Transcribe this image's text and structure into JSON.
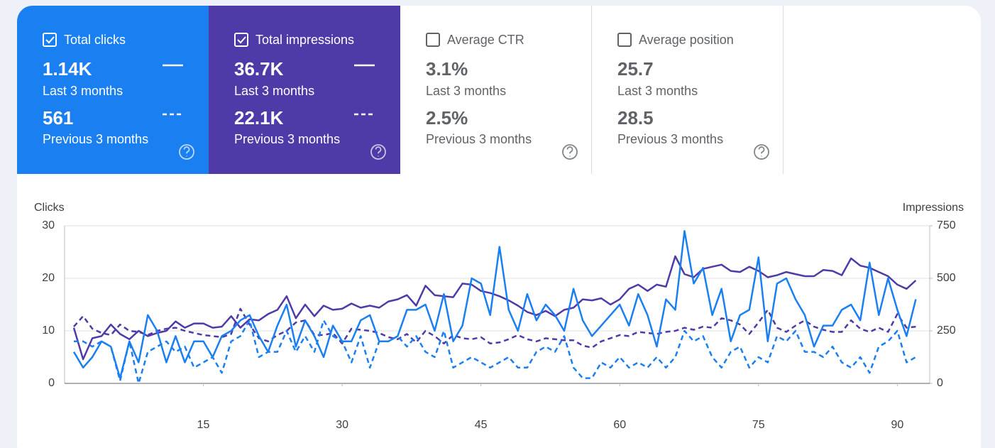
{
  "cards": [
    {
      "label": "Total clicks",
      "checked": true,
      "color": "#1a7ff0",
      "current": {
        "value": "1.14K",
        "period": "Last 3 months"
      },
      "previous": {
        "value": "561",
        "period": "Previous 3 months"
      }
    },
    {
      "label": "Total impressions",
      "checked": true,
      "color": "#4f3aa8",
      "current": {
        "value": "36.7K",
        "period": "Last 3 months"
      },
      "previous": {
        "value": "22.1K",
        "period": "Previous 3 months"
      }
    },
    {
      "label": "Average CTR",
      "checked": false,
      "color": "#ffffff",
      "current": {
        "value": "3.1%",
        "period": "Last 3 months"
      },
      "previous": {
        "value": "2.5%",
        "period": "Previous 3 months"
      }
    },
    {
      "label": "Average position",
      "checked": false,
      "color": "#ffffff",
      "current": {
        "value": "25.7",
        "period": "Last 3 months"
      },
      "previous": {
        "value": "28.5",
        "period": "Previous 3 months"
      }
    }
  ],
  "chart_data": {
    "type": "line",
    "ylabel": "Clicks",
    "y2label": "Impressions",
    "x": [
      1,
      2,
      3,
      4,
      5,
      6,
      7,
      8,
      9,
      10,
      11,
      12,
      13,
      14,
      15,
      16,
      17,
      18,
      19,
      20,
      21,
      22,
      23,
      24,
      25,
      26,
      27,
      28,
      29,
      30,
      31,
      32,
      33,
      34,
      35,
      36,
      37,
      38,
      39,
      40,
      41,
      42,
      43,
      44,
      45,
      46,
      47,
      48,
      49,
      50,
      51,
      52,
      53,
      54,
      55,
      56,
      57,
      58,
      59,
      60,
      61,
      62,
      63,
      64,
      65,
      66,
      67,
      68,
      69,
      70,
      71,
      72,
      73,
      74,
      75,
      76,
      77,
      78,
      79,
      80,
      81,
      82,
      83,
      84,
      85,
      86,
      87,
      88,
      89,
      90,
      91,
      92
    ],
    "xlim": [
      0,
      93.5
    ],
    "xticks": [
      15,
      30,
      45,
      60,
      75,
      90
    ],
    "ylim": [
      0,
      30
    ],
    "yticks": [
      0,
      10,
      20,
      30
    ],
    "y2lim": [
      0,
      750
    ],
    "y2ticks": [
      0,
      250,
      500,
      750
    ],
    "grid": true,
    "series": [
      {
        "name": "Clicks",
        "color": "#1a7ff0",
        "style": "solid",
        "values": [
          6,
          3,
          5,
          8,
          7,
          1,
          8,
          4,
          13,
          10,
          4,
          9,
          4,
          8,
          8,
          5,
          9,
          10,
          12,
          13,
          9,
          6,
          11,
          15,
          7,
          12,
          9,
          5,
          11,
          8,
          8,
          12,
          13,
          8,
          8,
          9,
          14,
          14,
          15,
          10,
          17,
          8,
          11,
          20,
          19,
          13,
          26,
          14,
          10,
          17,
          12,
          15,
          13,
          10,
          18,
          12,
          9,
          11,
          13,
          15,
          11,
          17,
          13,
          7,
          16,
          14,
          29,
          19,
          22,
          13,
          18,
          8,
          13,
          14,
          24,
          8,
          19,
          20,
          16,
          13,
          7,
          11,
          11,
          14,
          15,
          12,
          23,
          13,
          20,
          14,
          9,
          16
        ]
      },
      {
        "name": "Clicks previous",
        "color": "#1a7ff0",
        "style": "dashed",
        "values": [
          8,
          8,
          7,
          8,
          7,
          0.5,
          8,
          0,
          6,
          7,
          8,
          6,
          7,
          3,
          4,
          5,
          2,
          8,
          9,
          12,
          5,
          6,
          6,
          10,
          6,
          9,
          6,
          12,
          9,
          8,
          4,
          9,
          3,
          8,
          8,
          9,
          7,
          9,
          6,
          5,
          10,
          3,
          4,
          5,
          4,
          3,
          4,
          5,
          3,
          3,
          6,
          7,
          6,
          9,
          3,
          1,
          1,
          4,
          3,
          5,
          3,
          4,
          3,
          5,
          3,
          5,
          10,
          8,
          9,
          5,
          3,
          6,
          7,
          3,
          5,
          4,
          9,
          8,
          10,
          6,
          6,
          5,
          7,
          4,
          3,
          5,
          2,
          7,
          8,
          10,
          4,
          5
        ]
      },
      {
        "name": "Impressions",
        "color": "#4f3aa8",
        "style": "solid",
        "axis": "y2",
        "values": [
          265,
          115,
          215,
          225,
          280,
          235,
          210,
          250,
          225,
          240,
          250,
          295,
          265,
          285,
          285,
          265,
          270,
          320,
          265,
          305,
          300,
          330,
          350,
          415,
          310,
          375,
          320,
          370,
          350,
          355,
          380,
          360,
          370,
          360,
          390,
          400,
          420,
          370,
          465,
          420,
          415,
          410,
          475,
          470,
          440,
          430,
          415,
          395,
          370,
          340,
          325,
          345,
          320,
          350,
          360,
          400,
          395,
          405,
          375,
          400,
          450,
          470,
          440,
          470,
          460,
          605,
          520,
          505,
          545,
          555,
          565,
          535,
          530,
          555,
          535,
          505,
          515,
          530,
          520,
          510,
          510,
          540,
          535,
          515,
          595,
          560,
          550,
          530,
          510,
          470,
          450,
          490
        ]
      },
      {
        "name": "Impressions previous",
        "color": "#4f3aa8",
        "style": "dashed",
        "axis": "y2",
        "values": [
          270,
          320,
          260,
          240,
          230,
          280,
          250,
          245,
          230,
          250,
          260,
          265,
          250,
          240,
          230,
          225,
          220,
          235,
          355,
          280,
          215,
          200,
          230,
          250,
          290,
          300,
          230,
          230,
          240,
          190,
          260,
          255,
          250,
          240,
          220,
          210,
          235,
          195,
          250,
          225,
          190,
          230,
          215,
          210,
          220,
          190,
          195,
          210,
          230,
          210,
          200,
          215,
          210,
          205,
          205,
          180,
          170,
          200,
          215,
          230,
          225,
          245,
          240,
          235,
          245,
          250,
          265,
          255,
          270,
          265,
          310,
          300,
          280,
          235,
          290,
          350,
          265,
          245,
          275,
          300,
          270,
          255,
          245,
          245,
          300,
          260,
          245,
          265,
          245,
          330,
          265,
          270
        ]
      }
    ]
  }
}
